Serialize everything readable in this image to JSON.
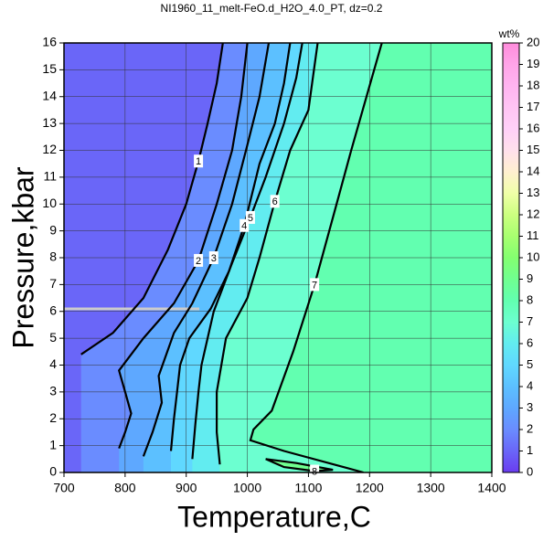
{
  "chart_data": {
    "type": "contour",
    "title": "NI1960_11_melt-FeO.d_H2O_4.0_PT, dz=0.2",
    "x_label": "Temperature,C",
    "y_label": "Pressure,kbar",
    "xlim": [
      700,
      1400
    ],
    "xticks": [
      700,
      800,
      900,
      1000,
      1100,
      1200,
      1300,
      1400
    ],
    "ylim": [
      0,
      16
    ],
    "yticks": [
      0,
      1,
      2,
      3,
      4,
      5,
      6,
      7,
      8,
      9,
      10,
      11,
      12,
      13,
      14,
      15,
      16
    ],
    "grid": true,
    "colorbar": {
      "label": "wt%",
      "lim": [
        0,
        20
      ],
      "ticks": [
        0,
        1,
        2,
        3,
        4,
        5,
        6,
        7,
        8,
        9,
        10,
        11,
        12,
        13,
        14,
        15,
        16,
        17,
        18,
        19,
        20
      ],
      "colors": [
        "#6a3cf0",
        "#6a66f8",
        "#6a8cff",
        "#5ea8ff",
        "#5cc0ff",
        "#60d8ff",
        "#62ecf0",
        "#6cffd0",
        "#62ffb0",
        "#70ff90",
        "#84ff70",
        "#a8ff70",
        "#ccff80",
        "#f0ffa8",
        "#fff0d0",
        "#ffe0ec",
        "#ffd0f8",
        "#ffc4f4",
        "#ffb4f0",
        "#ffa4e8",
        "#ff8cdc"
      ]
    },
    "contours": [
      {
        "level": 1,
        "x": [
          728,
          780,
          830,
          870,
          900,
          920,
          935,
          950,
          960
        ],
        "y": [
          4.4,
          5.2,
          6.5,
          8.3,
          10,
          11.6,
          13,
          14.5,
          16
        ]
      },
      {
        "level": 2,
        "x": [
          790,
          800,
          810,
          800,
          790,
          830,
          880,
          920,
          950,
          975,
          990,
          1000
        ],
        "y": [
          0.9,
          1.5,
          2.2,
          3,
          3.8,
          5,
          6.3,
          7.9,
          10,
          12,
          14,
          16
        ]
      },
      {
        "level": 3,
        "x": [
          830,
          845,
          860,
          855,
          880,
          910,
          945,
          975,
          1000,
          1020,
          1035
        ],
        "y": [
          0.6,
          1.5,
          2.6,
          3.6,
          5.2,
          6.3,
          8,
          10,
          12.2,
          14,
          16
        ]
      },
      {
        "level": 4,
        "x": [
          875,
          880,
          885,
          890,
          905,
          940,
          970,
          995,
          1020,
          1045,
          1060,
          1070
        ],
        "y": [
          0.8,
          2,
          3,
          4,
          5,
          6.1,
          7.5,
          9.2,
          11.5,
          13,
          14.5,
          16
        ]
      },
      {
        "level": 5,
        "x": [
          910,
          915,
          920,
          925,
          945,
          975,
          1005,
          1030,
          1060,
          1080,
          1090
        ],
        "y": [
          0.5,
          1.8,
          3,
          4,
          6,
          7.8,
          9.5,
          11,
          13,
          14.7,
          16
        ]
      },
      {
        "level": 6,
        "x": [
          955,
          950,
          950,
          965,
          1000,
          1020,
          1045,
          1070,
          1100,
          1115
        ],
        "y": [
          0.3,
          1.5,
          3,
          5,
          6.5,
          8,
          10.1,
          12,
          13.5,
          16
        ]
      },
      {
        "level": 7,
        "x": [
          1190,
          1060,
          1005,
          1010,
          1040,
          1075,
          1110,
          1140,
          1170,
          1195,
          1220
        ],
        "y": [
          0,
          0.8,
          1.2,
          1.6,
          2.3,
          4.5,
          7,
          9.5,
          12,
          14,
          16
        ]
      },
      {
        "level": 8,
        "x": [
          1030,
          1080,
          1140,
          1110,
          1060,
          1030
        ],
        "y": [
          0.5,
          0.35,
          0.1,
          0.05,
          0.2,
          0.5
        ]
      }
    ]
  }
}
